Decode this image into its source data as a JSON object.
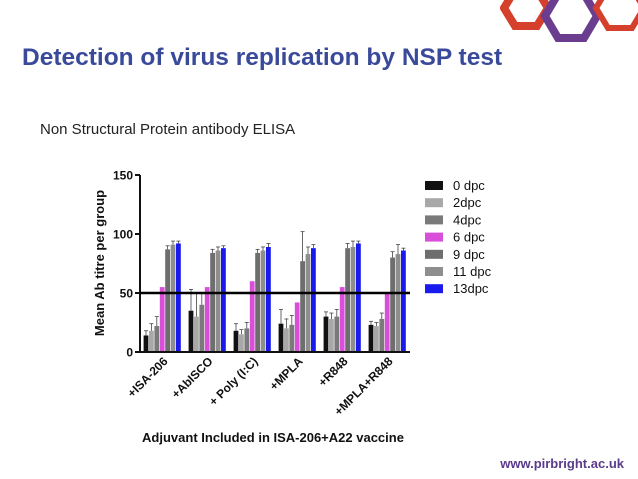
{
  "slide": {
    "title": "Detection of virus replication by NSP test",
    "subtitle": "Non Structural Protein antibody ELISA",
    "footer_url": "www.pirbright.ac.uk"
  },
  "colors": {
    "title": "#3a4a9a",
    "logo_red": "#d4402b",
    "logo_purple": "#6a3d8f"
  },
  "icons": {
    "logo": "pirbright-hexagon-logo"
  },
  "chart_data": {
    "type": "bar",
    "xlabel": "Adjuvant Included in ISA-206+A22 vaccine",
    "ylabel": "Mean Ab titre per group",
    "ylim": [
      0,
      150
    ],
    "yticks": [
      0,
      50,
      100,
      150
    ],
    "reference_line": 50,
    "legend_position": "right",
    "categories": [
      "+ISA-206",
      "+AbISCO",
      "+ Poly (I:C)",
      "+MPLA",
      "+R848",
      "+MPLA+R848"
    ],
    "series": [
      {
        "name": "0 dpc",
        "color": "#111111",
        "values": [
          14,
          35,
          18,
          24,
          30,
          23
        ],
        "errors": [
          4,
          18,
          6,
          12,
          4,
          3
        ]
      },
      {
        "name": "2dpc",
        "color": "#a8a8a8",
        "values": [
          18,
          30,
          15,
          20,
          28,
          22
        ],
        "errors": [
          6,
          20,
          4,
          8,
          5,
          3
        ]
      },
      {
        "name": "4dpc",
        "color": "#7a7a7a",
        "values": [
          22,
          40,
          20,
          23,
          30,
          28
        ],
        "errors": [
          8,
          10,
          5,
          8,
          6,
          5
        ]
      },
      {
        "name": "6 dpc",
        "color": "#d94fd9",
        "values": [
          55,
          55,
          60,
          42,
          55,
          50
        ],
        "errors": [
          0,
          0,
          0,
          0,
          0,
          0
        ]
      },
      {
        "name": "9 dpc",
        "color": "#6e6e6e",
        "values": [
          87,
          84,
          84,
          77,
          88,
          80
        ],
        "errors": [
          3,
          3,
          3,
          25,
          4,
          5
        ]
      },
      {
        "name": "11 dpc",
        "color": "#8e8e8e",
        "values": [
          91,
          86,
          86,
          83,
          89,
          83
        ],
        "errors": [
          3,
          3,
          3,
          6,
          5,
          8
        ]
      },
      {
        "name": "13dpc",
        "color": "#1a1aee",
        "values": [
          92,
          88,
          89,
          88,
          92,
          86
        ],
        "errors": [
          2,
          2,
          3,
          3,
          2,
          2
        ]
      }
    ]
  }
}
